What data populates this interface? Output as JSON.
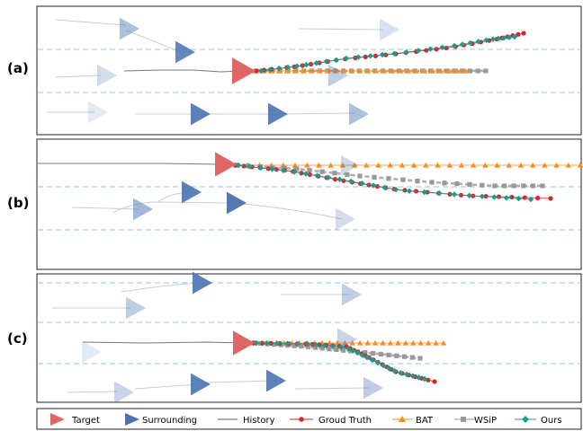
{
  "panels": [
    {
      "label": "(a)"
    },
    {
      "label": "(b)"
    },
    {
      "label": "(c)"
    }
  ],
  "legend": {
    "target": "Target",
    "surrounding": "Surrounding",
    "history": "History",
    "ground_truth": "Groud Truth",
    "bat": "BAT",
    "wsip": "WSiP",
    "ours": "Ours"
  },
  "colors": {
    "target": "#e06666",
    "surrounding": "#4a72b0",
    "history": "#777777",
    "ground_truth": "#d62728",
    "bat": "#ff8c1a",
    "wsip": "#999999",
    "ours": "#1f9a8a",
    "lane": "#a8d0f0"
  }
}
